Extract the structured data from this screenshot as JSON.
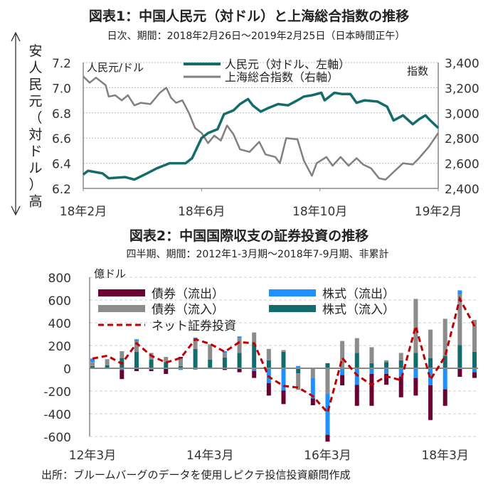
{
  "chart_data": [
    {
      "type": "line",
      "title": "図表1：中国人民元（対ドル）と上海総合指数の推移",
      "subtitle": "日次、期間：2018年2月26日～2019年2月25日（日本時間正午）",
      "left_axis_label": [
        "安",
        "人",
        "民",
        "元",
        "（",
        "対",
        "ド",
        "ル",
        "）",
        "高"
      ],
      "left_unit": "人民元/ドル",
      "right_unit": "指数",
      "ylim_left": [
        6.2,
        7.2
      ],
      "yticks_left": [
        "7.2",
        "7.0",
        "6.8",
        "6.6",
        "6.4",
        "6.2"
      ],
      "ylim_right": [
        2400,
        3400
      ],
      "yticks_right": [
        "3,400",
        "3,200",
        "3,000",
        "2,800",
        "2,600",
        "2,400"
      ],
      "xlim_months": [
        0,
        12
      ],
      "xticks": [
        {
          "label": "18年2月",
          "m": 0
        },
        {
          "label": "18年6月",
          "m": 4
        },
        {
          "label": "18年10月",
          "m": 8
        },
        {
          "label": "19年2月",
          "m": 12
        }
      ],
      "grid": true,
      "series": [
        {
          "name": "人民元（対ドル、左軸）",
          "color": "#136b6b",
          "axis": "left",
          "x": [
            0,
            0.16,
            0.65,
            0.86,
            1.41,
            1.73,
            2.16,
            2.49,
            2.92,
            3.46,
            3.68,
            4.0,
            4.22,
            4.54,
            4.76,
            5.08,
            5.3,
            5.57,
            5.73,
            6.0,
            6.27,
            6.59,
            6.92,
            7.24,
            7.46,
            7.73,
            8.05,
            8.16,
            8.49,
            8.76,
            9.03,
            9.24,
            9.51,
            9.95,
            10.27,
            10.49,
            10.81,
            11.14,
            11.35,
            11.57,
            11.73,
            12.0
          ],
          "y": [
            6.31,
            6.34,
            6.32,
            6.28,
            6.29,
            6.27,
            6.32,
            6.36,
            6.4,
            6.4,
            6.44,
            6.6,
            6.64,
            6.67,
            6.79,
            6.82,
            6.87,
            6.91,
            6.86,
            6.81,
            6.84,
            6.87,
            6.86,
            6.9,
            6.93,
            6.94,
            6.96,
            6.9,
            6.96,
            6.95,
            6.95,
            6.88,
            6.9,
            6.89,
            6.85,
            6.74,
            6.78,
            6.71,
            6.75,
            6.78,
            6.74,
            6.68
          ]
        },
        {
          "name": "上海総合指数（右軸）",
          "color": "#808080",
          "axis": "right",
          "x": [
            0,
            0.22,
            0.43,
            0.76,
            0.86,
            1.08,
            1.3,
            1.51,
            1.73,
            1.95,
            2.27,
            2.59,
            2.81,
            2.97,
            3.14,
            3.35,
            3.57,
            3.78,
            4.0,
            4.22,
            4.43,
            4.65,
            4.86,
            5.08,
            5.3,
            5.62,
            5.95,
            6.16,
            6.49,
            6.65,
            6.86,
            7.24,
            7.46,
            7.73,
            7.89,
            8.22,
            8.43,
            8.7,
            8.97,
            9.24,
            9.46,
            9.73,
            10.0,
            10.22,
            10.49,
            10.81,
            11.14,
            11.35,
            11.68,
            12.0
          ],
          "y": [
            3290,
            3240,
            3280,
            3220,
            3130,
            3140,
            3100,
            3140,
            3060,
            3080,
            3070,
            3160,
            3200,
            3120,
            3080,
            3100,
            3000,
            2880,
            2840,
            2760,
            2820,
            2780,
            2900,
            2830,
            2710,
            2690,
            2770,
            2670,
            2650,
            2600,
            2800,
            2790,
            2620,
            2500,
            2600,
            2650,
            2580,
            2650,
            2580,
            2640,
            2590,
            2560,
            2480,
            2470,
            2530,
            2600,
            2590,
            2640,
            2730,
            2840
          ]
        }
      ]
    },
    {
      "type": "bar",
      "stacked": true,
      "title": "図表2：中国国際収支の証券投資の推移",
      "subtitle": "四半期、期間：2012年1-3月期～2018年7-9月期、非累計",
      "unit": "億ドル",
      "ylim": [
        -600,
        800
      ],
      "yticks": [
        "800",
        "600",
        "400",
        "200",
        "0",
        "-200",
        "-400",
        "-600"
      ],
      "xticks": [
        {
          "label": "12年3月",
          "i": 0
        },
        {
          "label": "14年3月",
          "i": 8
        },
        {
          "label": "16年3月",
          "i": 16
        },
        {
          "label": "18年3月",
          "i": 24
        }
      ],
      "categories_count": 27,
      "series": [
        {
          "name": "株式（流入）",
          "color": "#136b6b",
          "values": [
            20,
            25,
            90,
            145,
            75,
            55,
            20,
            170,
            75,
            95,
            135,
            215,
            70,
            145,
            -45,
            0,
            45,
            0,
            135,
            45,
            55,
            70,
            135,
            90,
            110,
            205,
            145
          ]
        },
        {
          "name": "債券（流入）",
          "color": "#8c8c8c",
          "values": [
            35,
            55,
            60,
            95,
            60,
            45,
            65,
            70,
            135,
            40,
            130,
            100,
            100,
            15,
            -145,
            -85,
            -220,
            240,
            130,
            140,
            15,
            65,
            475,
            250,
            325,
            445,
            280
          ]
        },
        {
          "name": "株式（流出）",
          "color": "#1e90ff",
          "values": [
            30,
            0,
            -15,
            15,
            -10,
            0,
            -15,
            30,
            0,
            15,
            15,
            -25,
            -130,
            -195,
            20,
            -180,
            -365,
            -60,
            -145,
            -50,
            -50,
            -75,
            -85,
            -150,
            -185,
            35,
            -35
          ]
        },
        {
          "name": "債券（流出）",
          "color": "#6b0033",
          "values": [
            0,
            0,
            -80,
            -25,
            -15,
            -50,
            15,
            -10,
            0,
            -15,
            -35,
            -60,
            -110,
            -120,
            0,
            -60,
            -60,
            -90,
            -185,
            -280,
            -95,
            -180,
            -155,
            -305,
            -145,
            -75,
            -50
          ]
        }
      ],
      "net": {
        "name": "ネット証券投資",
        "color": "#c00000",
        "values": [
          85,
          110,
          40,
          220,
          110,
          50,
          90,
          255,
          215,
          145,
          230,
          220,
          -75,
          -155,
          -170,
          -245,
          -390,
          90,
          -60,
          -145,
          -70,
          -105,
          370,
          -100,
          105,
          610,
          370
        ]
      },
      "legend_order": [
        "債券（流出）",
        "株式（流出）",
        "債券（流入）",
        "株式（流入）",
        "ネット証券投資"
      ]
    }
  ],
  "source": "出所：ブルームバーグのデータを使用しピクテ投信投資顧問作成"
}
